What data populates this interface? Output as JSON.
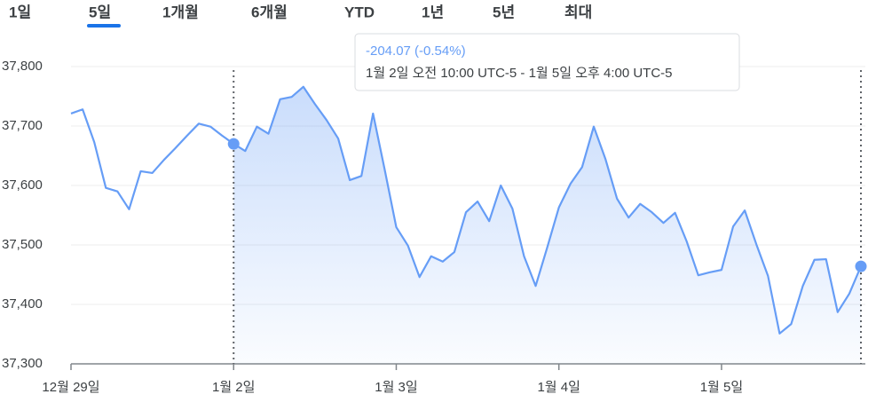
{
  "tabs": {
    "items": [
      "1일",
      "5일",
      "1개월",
      "6개월",
      "YTD",
      "1년",
      "5년",
      "최대"
    ],
    "selected": 1
  },
  "tooltip": {
    "change": "-204.07 (-0.54%)",
    "range": "1월 2일 오전 10:00 UTC-5 - 1월 5일 오후 4:00 UTC-5"
  },
  "chart_data": {
    "type": "line",
    "categories": [
      "12월 29일",
      null,
      null,
      null,
      null,
      null,
      null,
      null,
      null,
      null,
      null,
      null,
      null,
      null,
      "1월 2일",
      null,
      null,
      null,
      null,
      null,
      null,
      null,
      null,
      null,
      null,
      null,
      null,
      null,
      "1월 3일",
      null,
      null,
      null,
      null,
      null,
      null,
      null,
      null,
      null,
      null,
      null,
      null,
      null,
      "1월 4일",
      null,
      null,
      null,
      null,
      null,
      null,
      null,
      null,
      null,
      null,
      null,
      null,
      null,
      "1월 5일",
      null,
      null,
      null,
      null,
      null,
      null,
      null,
      null,
      null,
      null,
      null,
      null
    ],
    "series": [
      {
        "color": "#669df6",
        "values": [
          37721,
          37728,
          37673,
          37596,
          37590,
          37560,
          37624,
          37621,
          37643,
          37663,
          37684,
          37704,
          37699,
          37684,
          37670,
          37658,
          37699,
          37687,
          37745,
          37749,
          37766,
          37737,
          37710,
          37679,
          37609,
          37616,
          37721,
          37627,
          37530,
          37499,
          37446,
          37481,
          37472,
          37488,
          37555,
          37573,
          37540,
          37600,
          37561,
          37481,
          37431,
          37496,
          37563,
          37603,
          37631,
          37699,
          37645,
          37578,
          37546,
          37569,
          37555,
          37537,
          37554,
          37506,
          37449,
          37454,
          37458,
          37531,
          37558,
          37501,
          37448,
          37351,
          37367,
          37431,
          37475,
          37476,
          37387,
          37418,
          37464
        ]
      }
    ],
    "ylim": [
      37300,
      37800
    ],
    "yticks": [
      {
        "value": 37300,
        "label": "37,300"
      },
      {
        "value": 37400,
        "label": "37,400"
      },
      {
        "value": 37500,
        "label": "37,500"
      },
      {
        "value": 37600,
        "label": "37,600"
      },
      {
        "value": 37700,
        "label": "37,700"
      },
      {
        "value": 37800,
        "label": "37,800"
      }
    ],
    "grid": true
  }
}
